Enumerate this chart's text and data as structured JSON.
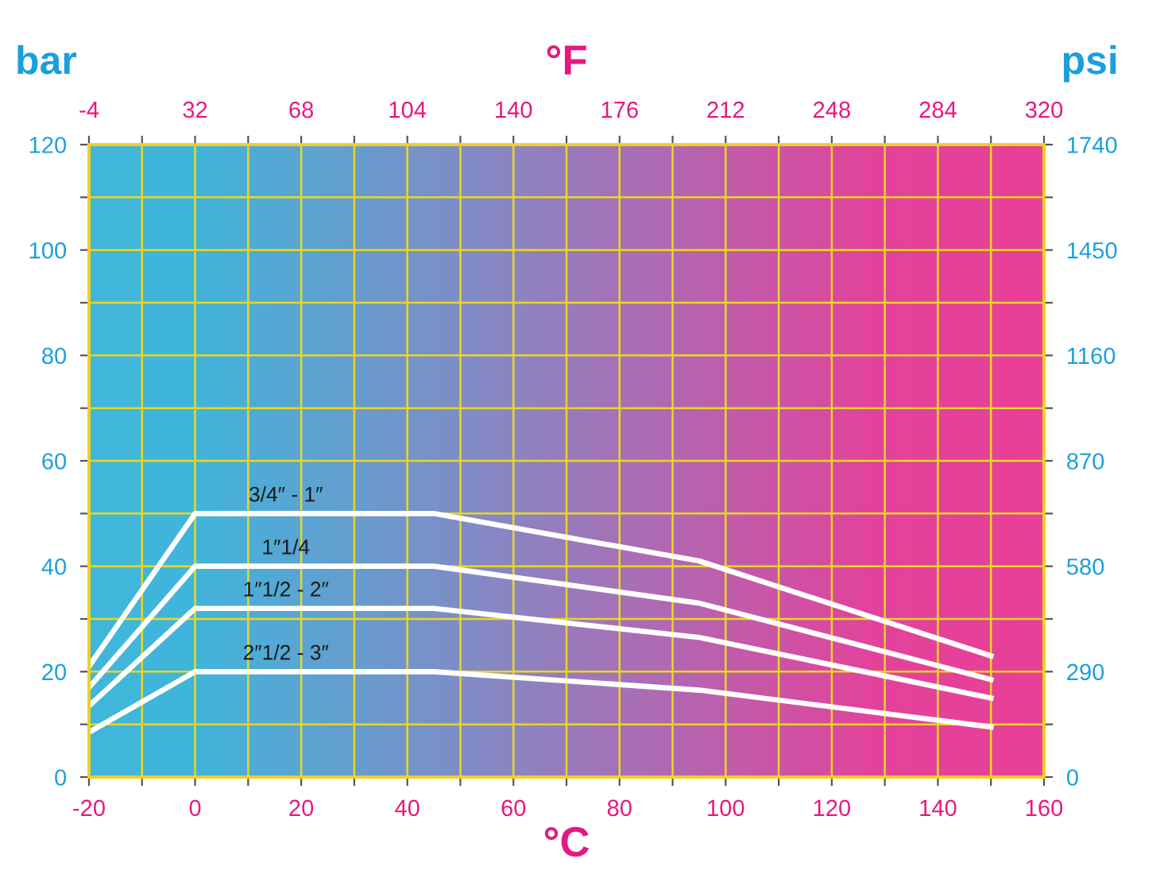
{
  "chart_data": {
    "type": "line",
    "xlabel": "°C",
    "ylabel": "bar",
    "x2label": "°F",
    "y2label": "psi",
    "x": [
      -20,
      0,
      45,
      95,
      150
    ],
    "series": [
      {
        "name": "3/4″ - 1″",
        "color": "#ffffff",
        "values": [
          21,
          50,
          50,
          41,
          23
        ]
      },
      {
        "name": "1″1/4",
        "color": "#ffffff",
        "values": [
          17,
          40,
          40,
          33,
          18.5
        ]
      },
      {
        "name": "1″1/2 - 2″",
        "color": "#ffffff",
        "values": [
          13.5,
          32,
          32,
          26.5,
          15
        ]
      },
      {
        "name": "2″1/2 - 3″",
        "color": "#ffffff",
        "values": [
          8.5,
          20,
          20,
          16.5,
          9.5
        ]
      }
    ],
    "xlim": [
      -20,
      160
    ],
    "xticks": [
      -20,
      {
        "value": -10,
        "label": null
      },
      0,
      {
        "value": 10,
        "label": null
      },
      20,
      {
        "value": 30,
        "label": null
      },
      40,
      {
        "value": 50,
        "label": null
      },
      60,
      {
        "value": 70,
        "label": null
      },
      80,
      {
        "value": 90,
        "label": null
      },
      100,
      {
        "value": 110,
        "label": null
      },
      120,
      {
        "value": 130,
        "label": null
      },
      140,
      {
        "value": 150,
        "label": null
      },
      160
    ],
    "ylim": [
      0,
      120
    ],
    "yticks": [
      0,
      {
        "value": 10,
        "label": null
      },
      20,
      {
        "value": 30,
        "label": null
      },
      40,
      {
        "value": 50,
        "label": null
      },
      60,
      {
        "value": 70,
        "label": null
      },
      80,
      {
        "value": 90,
        "label": null
      },
      100,
      {
        "value": 110,
        "label": null
      },
      120
    ],
    "x2lim": [
      -4,
      320
    ],
    "x2ticks": [
      -4,
      {
        "value": 14,
        "label": null
      },
      32,
      {
        "value": 50,
        "label": null
      },
      68,
      {
        "value": 86,
        "label": null
      },
      104,
      {
        "value": 122,
        "label": null
      },
      140,
      {
        "value": 158,
        "label": null
      },
      176,
      {
        "value": 194,
        "label": null
      },
      212,
      {
        "value": 230,
        "label": null
      },
      248,
      {
        "value": 266,
        "label": null
      },
      284,
      {
        "value": 302,
        "label": null
      },
      320
    ],
    "y2lim": [
      0,
      1740
    ],
    "y2ticks": [
      0,
      {
        "value": 145,
        "label": null
      },
      290,
      {
        "value": 435,
        "label": null
      },
      580,
      {
        "value": 725,
        "label": null
      },
      870,
      {
        "value": 1015,
        "label": null
      },
      1160,
      {
        "value": 1305,
        "label": null
      },
      1450,
      {
        "value": 1595,
        "label": null
      },
      1740
    ],
    "grid": true,
    "line_style": "solid"
  }
}
